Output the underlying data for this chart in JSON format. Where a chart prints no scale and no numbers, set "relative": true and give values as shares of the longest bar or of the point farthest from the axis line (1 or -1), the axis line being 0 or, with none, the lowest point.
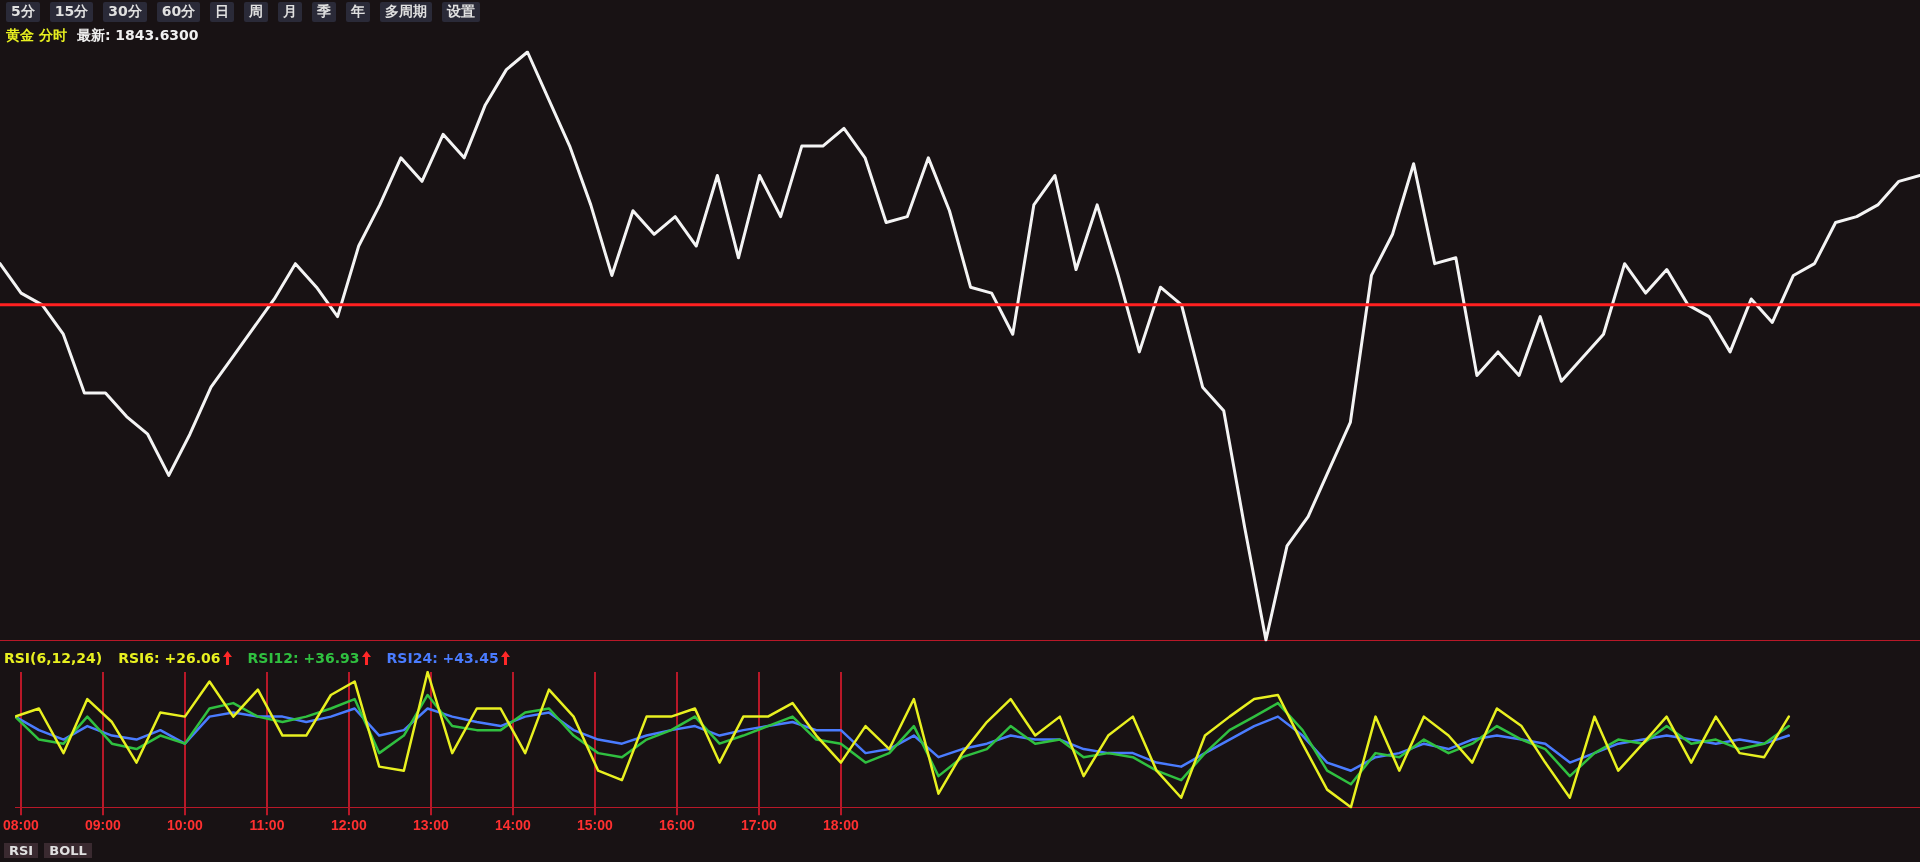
{
  "chart_data": [
    {
      "type": "line",
      "title": "黄金 分时",
      "subtitle": "最新: 1843.6300",
      "relative": true,
      "legend": false,
      "tick_labels": false,
      "marker": "none",
      "line_style": "solid",
      "annotations": [
        "5分",
        "15分",
        "30分",
        "60分",
        "日",
        "周",
        "月",
        "季",
        "年",
        "多周期",
        "设置"
      ],
      "categories": [
        null,
        null,
        null,
        null,
        null,
        null,
        null,
        null,
        null,
        null,
        null,
        null,
        null,
        null,
        null,
        null,
        null,
        null,
        null,
        null,
        null,
        null,
        null,
        null,
        null,
        null,
        null,
        null,
        null,
        null,
        null,
        null,
        null,
        null,
        null,
        null,
        null,
        null,
        null,
        null,
        null,
        null,
        null,
        null,
        null,
        null,
        null,
        null,
        null,
        null,
        null,
        null,
        null,
        null,
        null,
        null,
        null,
        null,
        null,
        null,
        null,
        null,
        null,
        null,
        null,
        null,
        null,
        null,
        null,
        null,
        null,
        null,
        null,
        null,
        null,
        null,
        null,
        null,
        null,
        null,
        null,
        null,
        null,
        null,
        null,
        null,
        null,
        null,
        null,
        null,
        null,
        null
      ],
      "ref_lines": [
        {
          "axis": "y",
          "value": 0.57,
          "color": "#ff2020"
        }
      ],
      "series": [
        {
          "color": "#f4f4f4",
          "values": [
            0.64,
            0.59,
            0.57,
            0.52,
            0.42,
            0.42,
            0.38,
            0.35,
            0.28,
            0.35,
            0.43,
            0.48,
            0.53,
            0.58,
            0.64,
            0.6,
            0.55,
            0.67,
            0.74,
            0.82,
            0.78,
            0.86,
            0.82,
            0.91,
            0.97,
            1.0,
            0.92,
            0.84,
            0.74,
            0.62,
            0.73,
            0.69,
            0.72,
            0.67,
            0.79,
            0.65,
            0.79,
            0.72,
            0.84,
            0.84,
            0.87,
            0.82,
            0.71,
            0.72,
            0.82,
            0.73,
            0.6,
            0.59,
            0.52,
            0.74,
            0.79,
            0.63,
            0.74,
            0.62,
            0.49,
            0.6,
            0.57,
            0.43,
            0.39,
            0.19,
            0.0,
            0.16,
            0.21,
            0.29,
            0.37,
            0.62,
            0.69,
            0.81,
            0.64,
            0.65,
            0.45,
            0.49,
            0.45,
            0.55,
            0.44,
            0.48,
            0.52,
            0.64,
            0.59,
            0.63,
            0.57,
            0.55,
            0.49,
            0.58,
            0.54,
            0.62,
            0.64,
            0.71,
            0.72,
            0.74,
            0.78,
            0.79
          ]
        }
      ]
    },
    {
      "type": "line",
      "legend_title": "RSI(6,12,24)",
      "relative": true,
      "grid": "x",
      "legend": "top left",
      "tick_labels": "x",
      "marker": "none",
      "line_style": "solid",
      "annotations": [
        "RSI",
        "BOLL"
      ],
      "x": [
        7.93,
        8.22,
        8.52,
        8.81,
        9.11,
        9.41,
        9.7,
        10.0,
        10.3,
        10.59,
        10.89,
        11.19,
        11.48,
        11.78,
        12.07,
        12.37,
        12.67,
        12.96,
        13.26,
        13.56,
        13.85,
        14.15,
        14.44,
        14.74,
        15.04,
        15.33,
        15.63,
        15.93,
        16.22,
        16.52,
        16.81,
        17.11,
        17.41,
        17.7,
        18.0,
        18.3,
        18.59,
        18.89,
        19.19,
        19.48,
        19.78,
        20.07,
        20.37,
        20.67,
        20.96,
        21.26,
        21.56,
        21.85,
        22.15,
        22.44,
        22.74,
        23.04,
        23.33,
        23.63,
        23.93,
        24.22,
        24.52,
        24.81,
        25.11,
        25.41,
        25.7,
        26.0,
        26.3,
        26.59,
        26.89,
        27.19,
        27.48,
        27.78,
        28.07,
        28.37,
        28.67,
        28.96,
        29.26,
        29.56
      ],
      "xlim": [
        7.93,
        31.16
      ],
      "xticks": [
        {
          "value": 8,
          "label": "08:00"
        },
        {
          "value": 9,
          "label": "09:00"
        },
        {
          "value": 10,
          "label": "10:00"
        },
        {
          "value": 11,
          "label": "11:00"
        },
        {
          "value": 12,
          "label": "12:00"
        },
        {
          "value": 13,
          "label": "13:00"
        },
        {
          "value": 14,
          "label": "14:00"
        },
        {
          "value": 15,
          "label": "15:00"
        },
        {
          "value": 16,
          "label": "16:00"
        },
        {
          "value": 17,
          "label": "17:00"
        },
        {
          "value": 18,
          "label": "18:00"
        }
      ],
      "series": [
        {
          "name": "RSI6: +26.06",
          "color": "#e8f020",
          "values": [
            0.67,
            0.73,
            0.4,
            0.8,
            0.63,
            0.33,
            0.7,
            0.67,
            0.93,
            0.67,
            0.87,
            0.53,
            0.53,
            0.83,
            0.93,
            0.3,
            0.27,
            1.0,
            0.4,
            0.73,
            0.73,
            0.4,
            0.87,
            0.67,
            0.27,
            0.2,
            0.67,
            0.67,
            0.73,
            0.33,
            0.67,
            0.67,
            0.77,
            0.53,
            0.33,
            0.6,
            0.43,
            0.8,
            0.1,
            0.4,
            0.63,
            0.8,
            0.53,
            0.67,
            0.23,
            0.53,
            0.67,
            0.27,
            0.07,
            0.53,
            0.67,
            0.8,
            0.83,
            0.47,
            0.13,
            0.0,
            0.67,
            0.27,
            0.67,
            0.53,
            0.33,
            0.73,
            0.6,
            0.33,
            0.07,
            0.67,
            0.27,
            0.47,
            0.67,
            0.33,
            0.67,
            0.4,
            0.37,
            0.67
          ]
        },
        {
          "name": "RSI12: +36.93",
          "color": "#30c040",
          "values": [
            0.67,
            0.5,
            0.47,
            0.67,
            0.47,
            0.43,
            0.53,
            0.47,
            0.73,
            0.77,
            0.67,
            0.63,
            0.67,
            0.73,
            0.8,
            0.4,
            0.53,
            0.83,
            0.6,
            0.57,
            0.57,
            0.7,
            0.73,
            0.53,
            0.4,
            0.37,
            0.5,
            0.57,
            0.67,
            0.47,
            0.53,
            0.6,
            0.67,
            0.5,
            0.47,
            0.33,
            0.4,
            0.6,
            0.23,
            0.37,
            0.43,
            0.6,
            0.47,
            0.5,
            0.37,
            0.4,
            0.37,
            0.27,
            0.2,
            0.4,
            0.57,
            0.67,
            0.77,
            0.57,
            0.27,
            0.17,
            0.4,
            0.37,
            0.5,
            0.4,
            0.47,
            0.6,
            0.5,
            0.43,
            0.23,
            0.4,
            0.5,
            0.47,
            0.6,
            0.47,
            0.5,
            0.43,
            0.47,
            0.6
          ]
        },
        {
          "name": "RSI24: +43.45",
          "color": "#4a7cff",
          "values": [
            0.67,
            0.57,
            0.5,
            0.6,
            0.53,
            0.5,
            0.57,
            0.47,
            0.67,
            0.7,
            0.67,
            0.67,
            0.63,
            0.67,
            0.73,
            0.53,
            0.57,
            0.73,
            0.67,
            0.63,
            0.6,
            0.67,
            0.7,
            0.57,
            0.5,
            0.47,
            0.53,
            0.57,
            0.6,
            0.53,
            0.57,
            0.6,
            0.63,
            0.57,
            0.57,
            0.4,
            0.43,
            0.53,
            0.37,
            0.43,
            0.47,
            0.53,
            0.5,
            0.5,
            0.43,
            0.4,
            0.4,
            0.33,
            0.3,
            0.4,
            0.5,
            0.6,
            0.67,
            0.53,
            0.33,
            0.27,
            0.37,
            0.4,
            0.47,
            0.43,
            0.5,
            0.53,
            0.5,
            0.47,
            0.33,
            0.4,
            0.47,
            0.5,
            0.53,
            0.5,
            0.47,
            0.5,
            0.47,
            0.53
          ]
        }
      ]
    }
  ]
}
